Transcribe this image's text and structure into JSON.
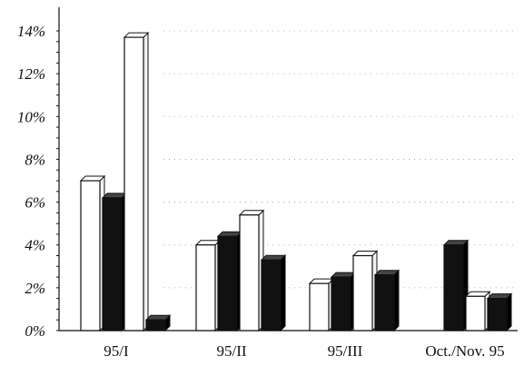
{
  "chart_data": {
    "type": "bar",
    "title": "",
    "xlabel": "",
    "ylabel": "",
    "categories": [
      "95/I",
      "95/II",
      "95/III",
      "Oct./Nov. 95"
    ],
    "y_ticks": [
      "0%",
      "2%",
      "4%",
      "6%",
      "8%",
      "10%",
      "12%",
      "14%"
    ],
    "ylim": [
      0,
      14
    ],
    "grid": "dotted, sparse",
    "legend": "none",
    "series": [
      {
        "values": [
          7.0,
          4.0,
          2.2,
          null
        ]
      },
      {
        "values": [
          6.2,
          4.4,
          2.5,
          4.0
        ]
      },
      {
        "values": [
          13.7,
          5.4,
          3.5,
          1.6
        ]
      },
      {
        "values": [
          0.5,
          3.3,
          2.6,
          1.5
        ]
      }
    ],
    "series_fill": [
      "#ffffff",
      "#111111",
      "#ffffff",
      "#111111"
    ]
  }
}
